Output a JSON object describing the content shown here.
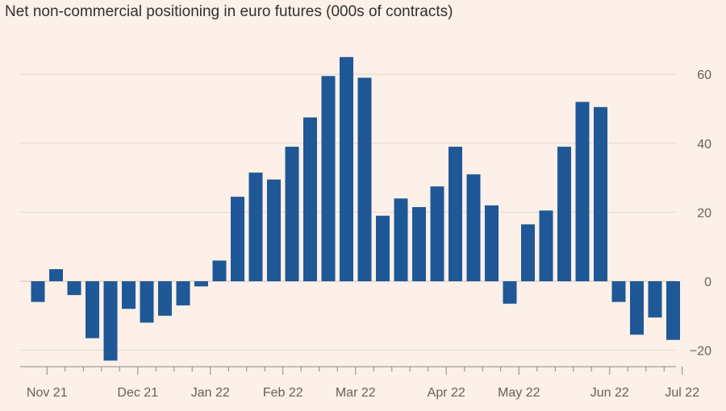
{
  "chart_data": {
    "type": "bar",
    "title": "Net non-commercial positioning in euro futures (000s of contracts)",
    "xlabel": "",
    "ylabel": "",
    "ylim": [
      -25,
      65
    ],
    "y_ticks": [
      60,
      40,
      20,
      0,
      -20
    ],
    "y_tick_labels": [
      "60",
      "40",
      "20",
      "0",
      "−20"
    ],
    "grid": true,
    "x_tick_labels": [
      "Nov 21",
      "Dec 21",
      "Jan 22",
      "Feb 22",
      "Mar 22",
      "Apr 22",
      "May 22",
      "Jun 22",
      "Jul 22"
    ],
    "x_tick_positions": [
      0.5,
      5.5,
      9.5,
      13.5,
      17.5,
      22.5,
      26.5,
      31.5,
      35.5
    ],
    "x_minor_tick_positions": [
      1.5,
      2.5,
      3.5,
      4.5,
      6.5,
      7.5,
      8.5,
      10.5,
      11.5,
      12.5,
      14.5,
      15.5,
      16.5,
      18.5,
      19.5,
      20.5,
      21.5,
      23.5,
      24.5,
      25.5,
      27.5,
      28.5,
      29.5,
      30.5,
      32.5,
      33.5,
      34.5
    ],
    "series": [
      {
        "color": "#1f5896",
        "values": [
          -6,
          3.5,
          -4,
          -16.5,
          -23,
          -8,
          -12,
          -10,
          -7,
          -1.5,
          6,
          24.5,
          31.5,
          29.5,
          39,
          47.5,
          59.5,
          65,
          59,
          19,
          24,
          21.5,
          27.5,
          39,
          31,
          22,
          -6.5,
          16.5,
          20.5,
          39,
          52,
          50.5,
          -6,
          -15.5,
          -10.5,
          -17
        ]
      }
    ]
  }
}
